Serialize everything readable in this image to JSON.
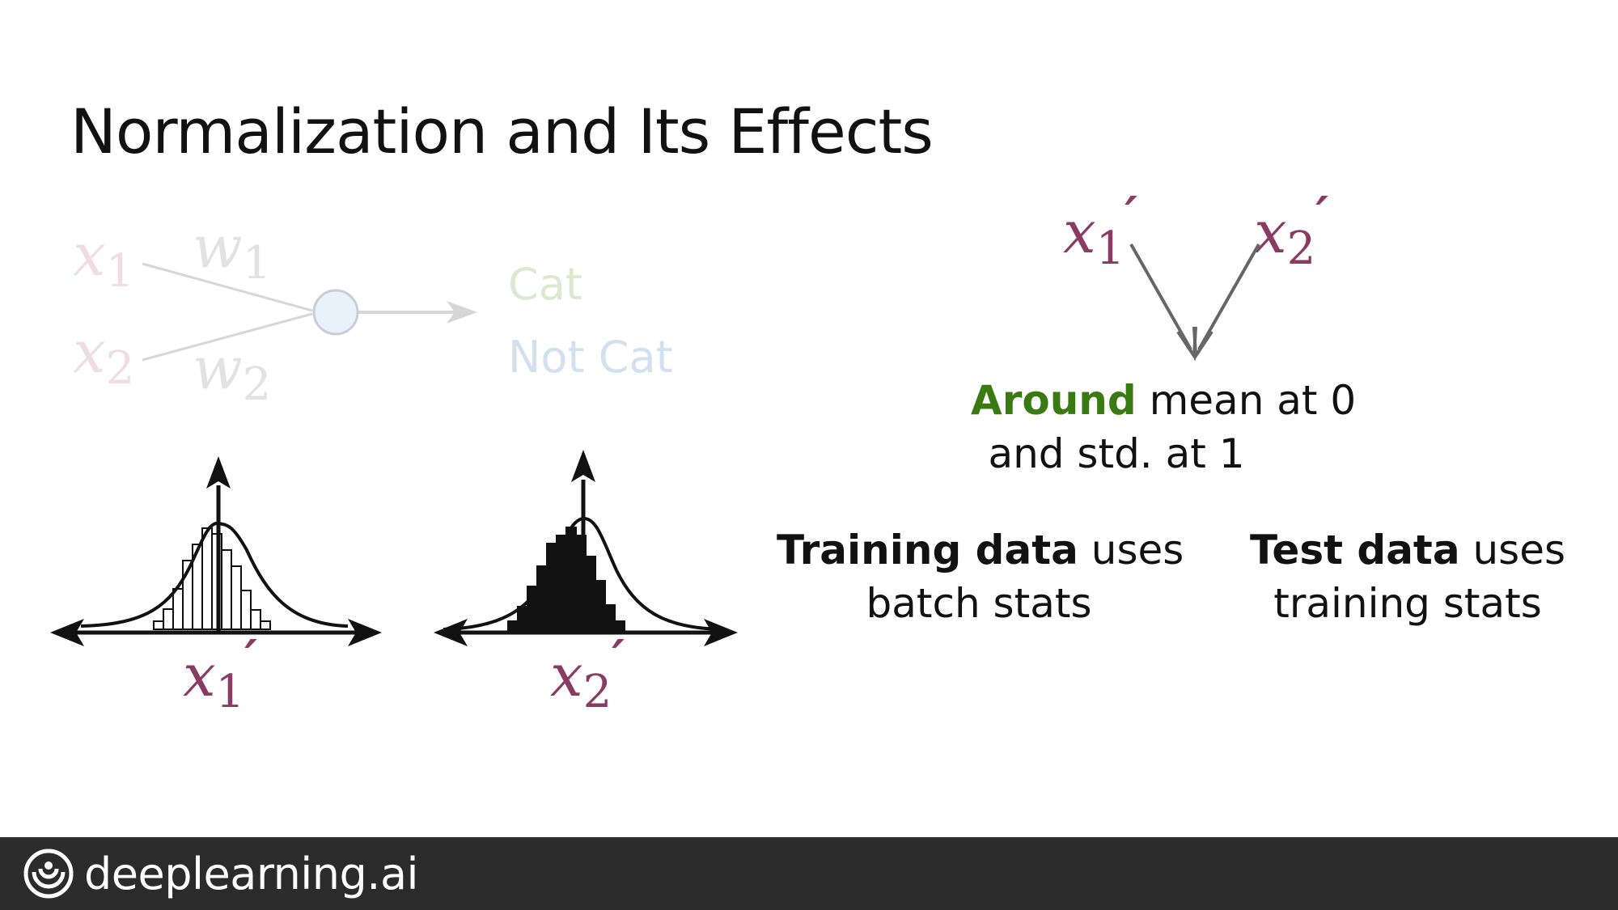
{
  "title": "Normalization and Its Effects",
  "neuron": {
    "x1": "x",
    "x1_sub": "1",
    "x2": "x",
    "x2_sub": "2",
    "w1": "w",
    "w1_sub": "1",
    "w2": "w",
    "w2_sub": "2",
    "out_cat": "Cat",
    "out_not_cat": "Not Cat"
  },
  "dist1": {
    "var": "x",
    "sub": "1",
    "prime": "′"
  },
  "dist2": {
    "var": "x",
    "sub": "2",
    "prime": "′"
  },
  "merge": {
    "a": {
      "var": "x",
      "sub": "1",
      "prime": "′"
    },
    "b": {
      "var": "x",
      "sub": "2",
      "prime": "′"
    },
    "around": "Around",
    "line1_rest": " mean at 0",
    "line2": "and std. at 1"
  },
  "training": {
    "bold": "Training data",
    "rest": " uses",
    "line2": "batch stats"
  },
  "test": {
    "bold": "Test data",
    "rest": " uses",
    "line2": "training stats"
  },
  "footer": {
    "brand": "deeplearning.ai"
  },
  "colors": {
    "accent_green": "#3a7a12",
    "prime_maroon": "#8a3b64",
    "faded_pink": "#f0dde4",
    "faded_green": "#dce8d2",
    "faded_blue": "#d2e0f0"
  }
}
